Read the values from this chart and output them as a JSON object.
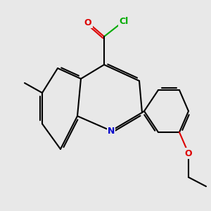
{
  "bg_color": "#e8e8e8",
  "bond_color": "#000000",
  "bond_lw": 1.5,
  "atom_colors": {
    "O": "#dd0000",
    "N": "#0000cc",
    "Cl": "#00aa00",
    "C": "#000000"
  },
  "font_size": 8.5
}
